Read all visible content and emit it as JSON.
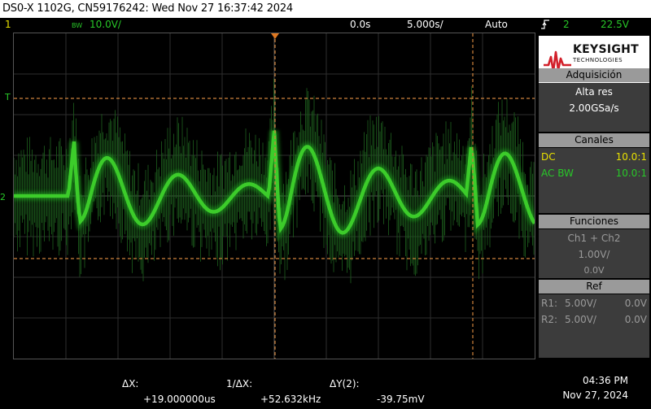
{
  "title": "DS0-X 1102G, CN59176242: Wed Nov 27 16:37:42 2024",
  "status": {
    "channel1": "1",
    "bw": "BW",
    "channel2_scale": "10.0V/",
    "time_delay": "0.0s",
    "time_scale": "5.000s/",
    "trigger_mode": "Auto",
    "trigger_channel": "2",
    "trigger_level": "22.5V"
  },
  "markers": {
    "trigger_level": "T",
    "ground_ref": "2"
  },
  "panel": {
    "brand": "KEYSIGHT",
    "brand_sub": "TECHNOLOGIES",
    "acquisition": {
      "heading": "Adquisición",
      "mode": "Alta res",
      "rate": "2.00GSa/s"
    },
    "channels": {
      "heading": "Canales",
      "rows": [
        {
          "coupling": "DC",
          "probe": "10.0:1"
        },
        {
          "coupling": "AC BW",
          "probe": "10.0:1"
        }
      ]
    },
    "functions": {
      "heading": "Funciones",
      "name": "Ch1 + Ch2",
      "scale": "1.00V/",
      "offset": "0.0V"
    },
    "ref": {
      "heading": "Ref",
      "rows": [
        {
          "name": "R1:",
          "scale": "5.00V/",
          "offset": "0.0V"
        },
        {
          "name": "R2:",
          "scale": "5.00V/",
          "offset": "0.0V"
        }
      ]
    }
  },
  "measurements": {
    "dx_label": "ΔX:",
    "dx_value": "+19.000000us",
    "inv_dx_label": "1/ΔX:",
    "inv_dx_value": "+52.632kHz",
    "dy_label": "ΔY(2):",
    "dy_value": "-39.75mV"
  },
  "clock": {
    "time": "04:36 PM",
    "date": "Nov 27, 2024"
  },
  "colors": {
    "channel1": "#e8e000",
    "channel2": "#28c828",
    "cursor": "#d0843c"
  }
}
